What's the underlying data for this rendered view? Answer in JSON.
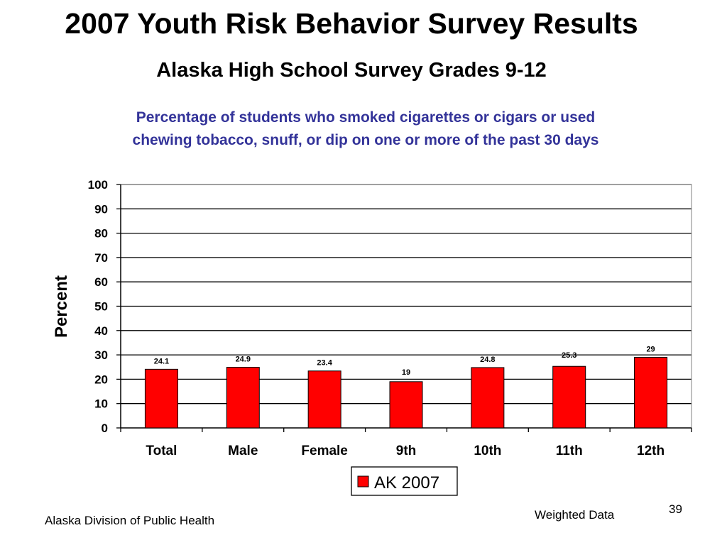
{
  "slide": {
    "title": "2007 Youth Risk Behavior Survey Results",
    "subtitle": "Alaska High School Survey Grades 9-12",
    "footer_left": "Alaska Division of Public Health",
    "footer_right": "Weighted Data",
    "page_number": "39"
  },
  "chart_data": {
    "type": "bar",
    "title_lines": [
      "Percentage of students who smoked cigarettes or cigars or used",
      "chewing tobacco, snuff, or dip on one or more of the past 30 days"
    ],
    "categories": [
      "Total",
      "Male",
      "Female",
      "9th",
      "10th",
      "11th",
      "12th"
    ],
    "series": [
      {
        "name": "AK 2007",
        "values": [
          24.1,
          24.9,
          23.4,
          19,
          24.8,
          25.3,
          29
        ],
        "color": "#ff0000"
      }
    ],
    "data_labels": [
      "24.1",
      "24.9",
      "23.4",
      "19",
      "24.8",
      "25.3",
      "29"
    ],
    "xlabel": "",
    "ylabel": "Percent",
    "ylim": [
      0,
      100
    ],
    "yticks": [
      0,
      10,
      20,
      30,
      40,
      50,
      60,
      70,
      80,
      90,
      100
    ],
    "grid": true,
    "legend_position": "bottom"
  }
}
